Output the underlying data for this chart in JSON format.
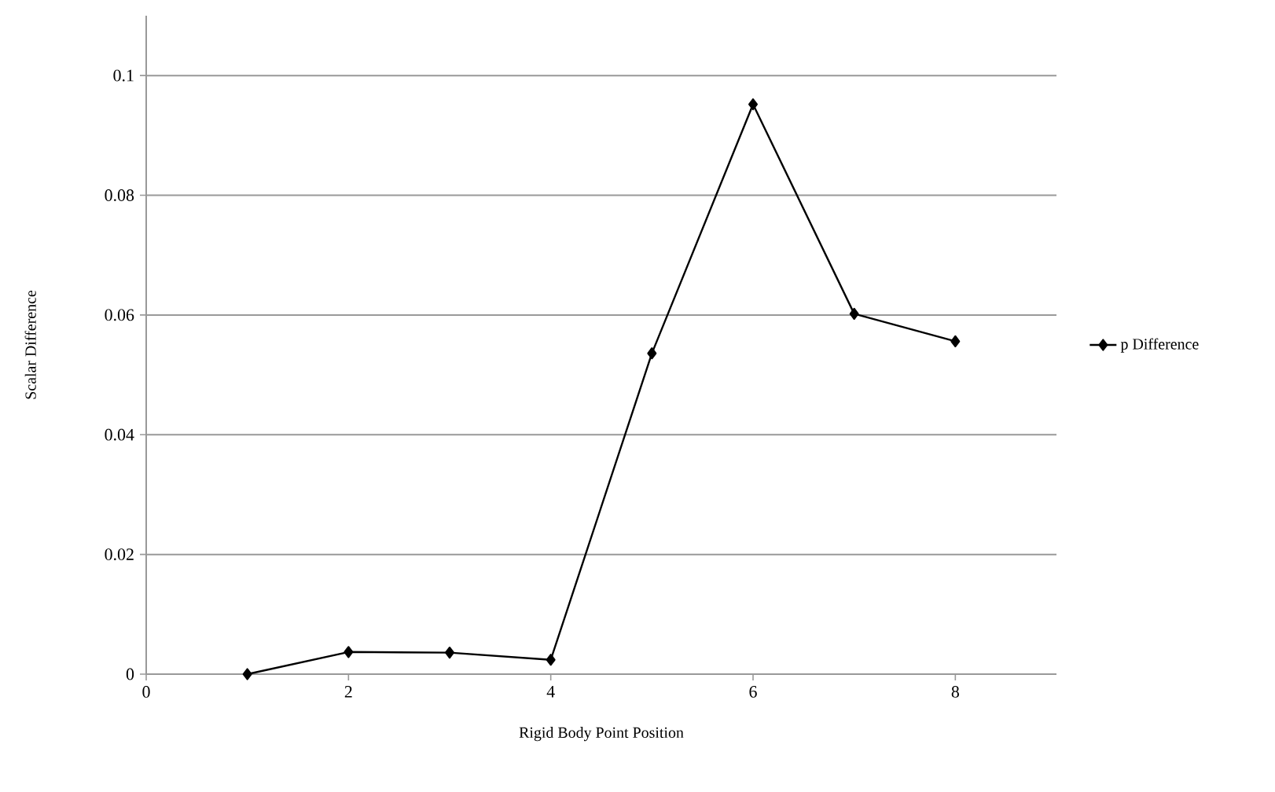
{
  "chart_data": {
    "type": "line",
    "xlabel": "Rigid Body Point Position",
    "ylabel": "Scalar Difference",
    "x": [
      1,
      2,
      3,
      4,
      5,
      6,
      7,
      8
    ],
    "series": [
      {
        "name": "p Difference",
        "color": "#000000",
        "values": [
          0.0,
          0.0037,
          0.0036,
          0.0024,
          0.0536,
          0.0952,
          0.0602,
          0.0556
        ]
      }
    ],
    "xlim": [
      0,
      9
    ],
    "xticks": [
      0,
      2,
      4,
      6,
      8
    ],
    "ylim": [
      0,
      0.11
    ],
    "yticks": [
      0,
      0.02,
      0.04,
      0.06,
      0.08,
      0.1
    ],
    "grid": "y",
    "legend": "right",
    "marker": "diamond"
  }
}
